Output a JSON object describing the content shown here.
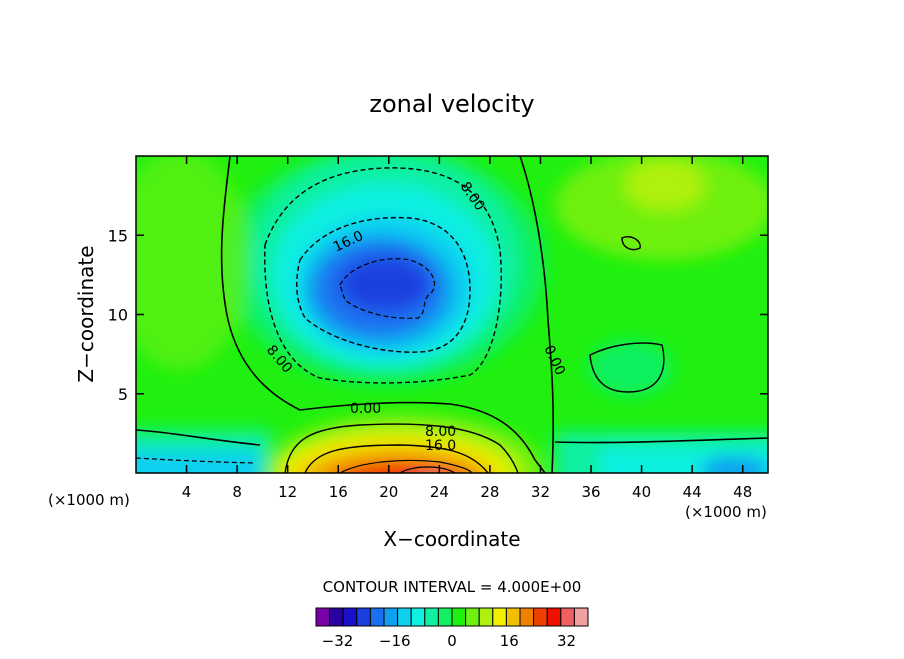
{
  "chart_data": {
    "type": "heatmap",
    "title": "zonal velocity",
    "xlabel": "X−coordinate",
    "ylabel": "Z−coordinate",
    "x_unit_left": "(×1000 m)",
    "x_unit_right": "(×1000 m)",
    "xlim": [
      0,
      50
    ],
    "ylim": [
      0,
      20
    ],
    "x_ticks": [
      4,
      8,
      12,
      16,
      20,
      24,
      28,
      32,
      36,
      40,
      44,
      48
    ],
    "y_ticks": [
      5,
      10,
      15
    ],
    "contour_interval_text": "CONTOUR INTERVAL = 4.000E+00",
    "contour_labels": [
      "8.00",
      "16.0",
      "8.00",
      "0.00",
      "0.00",
      "8.00",
      "16.0"
    ],
    "colorbar": {
      "levels": [
        -38,
        -34,
        -30,
        -26,
        -22,
        -18,
        -14,
        -10,
        -6,
        -2,
        2,
        6,
        10,
        14,
        18,
        22,
        26,
        30,
        34,
        38
      ],
      "colors": [
        "#7a00a8",
        "#2a00a0",
        "#1a10c8",
        "#1a40e0",
        "#1a70f0",
        "#10a0f0",
        "#10d0f0",
        "#10f0e0",
        "#10f0a0",
        "#10f060",
        "#20f010",
        "#70f010",
        "#b0f010",
        "#f0f000",
        "#f0c000",
        "#f08000",
        "#f04000",
        "#f01000",
        "#f06060",
        "#f0a0a0"
      ],
      "tick_labels": [
        "−32",
        "−16",
        "0",
        "16",
        "32"
      ],
      "tick_values": [
        -32,
        -16,
        0,
        16,
        32
      ]
    },
    "features": [
      {
        "kind": "min",
        "x": 21,
        "z": 12,
        "value": -22,
        "note": "negative core"
      },
      {
        "kind": "max",
        "x": 23,
        "z": 0.5,
        "value": 36,
        "note": "positive core near surface"
      },
      {
        "kind": "max",
        "x": 43,
        "z": 16,
        "value": 6
      },
      {
        "kind": "min",
        "x": 46,
        "z": 0.5,
        "value": -14
      }
    ]
  }
}
